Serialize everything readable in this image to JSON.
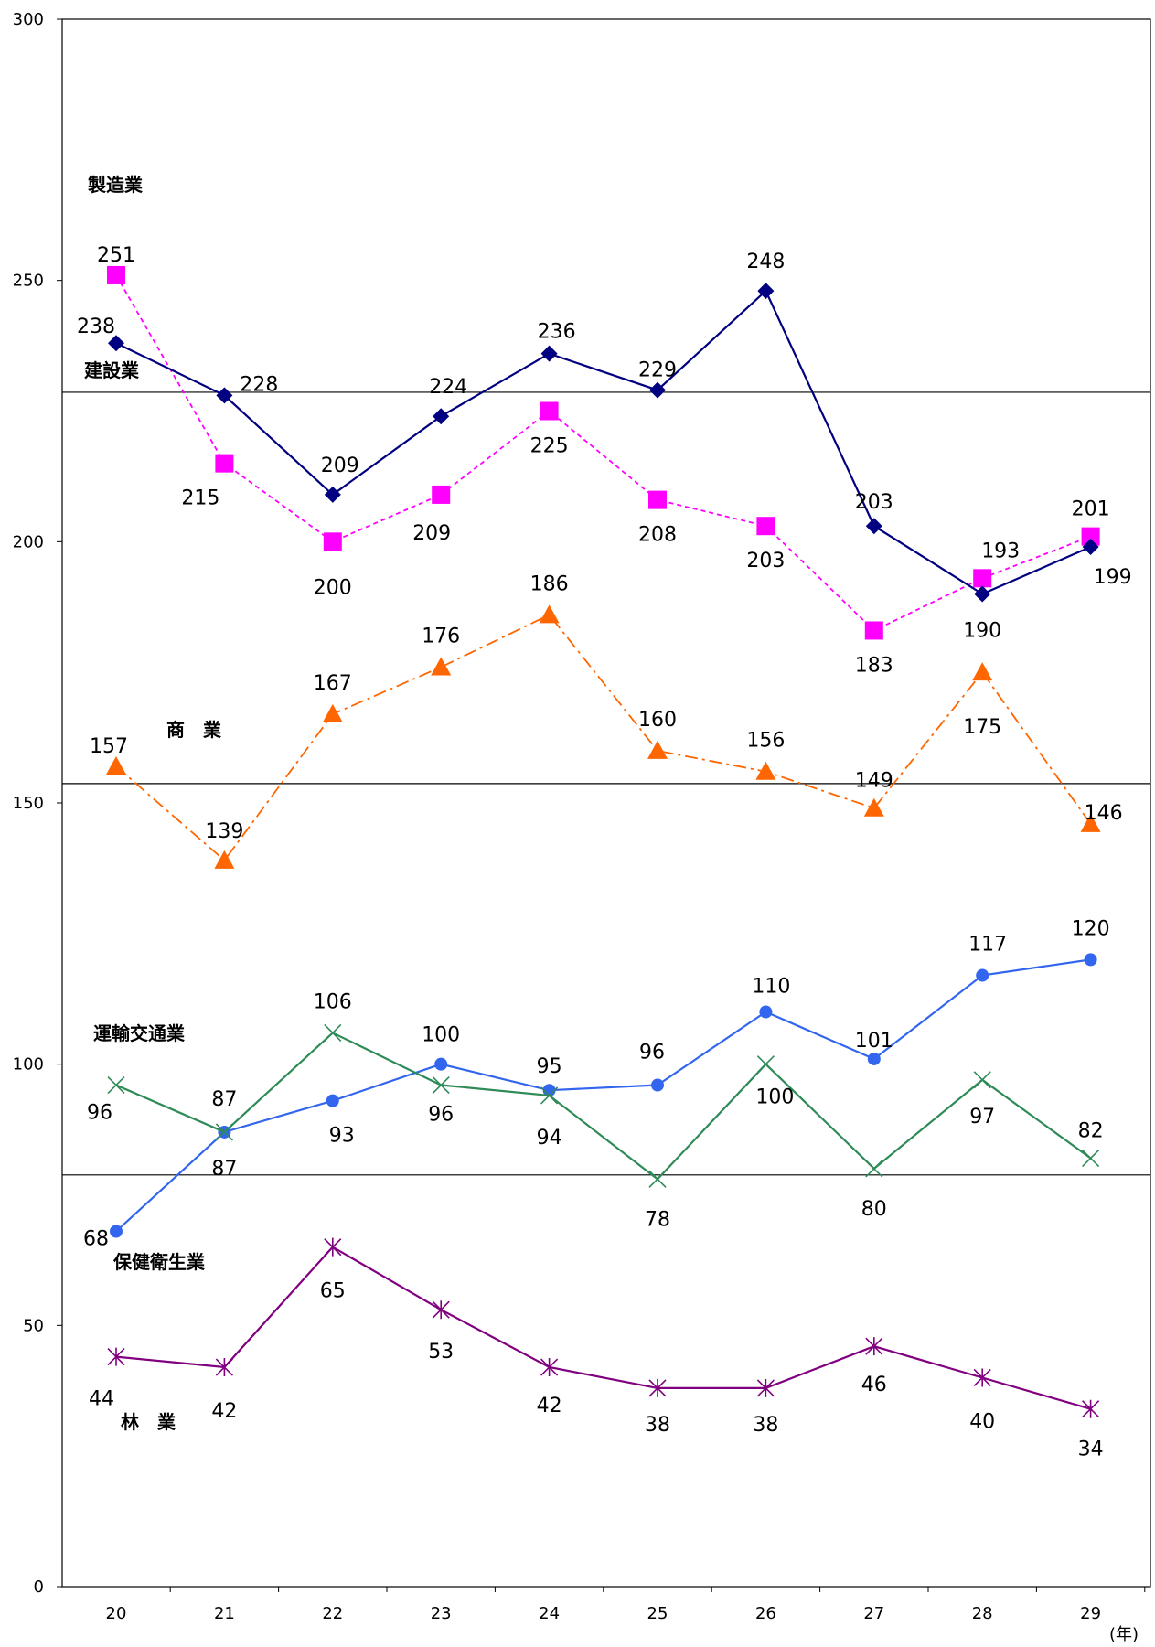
{
  "chart_data": {
    "type": "line",
    "x": [
      "20",
      "21",
      "22",
      "23",
      "24",
      "25",
      "26",
      "27",
      "28",
      "29"
    ],
    "x_unit": "(年)",
    "ylim": [
      0,
      300
    ],
    "y_ticks": [
      "0",
      "50",
      "100",
      "150",
      "200",
      "250",
      "300"
    ],
    "grid": false,
    "reference_lines": [
      78.8,
      153.7,
      228.6
    ],
    "series": [
      {
        "name": "製造業",
        "marker": "square",
        "line": "dashed",
        "color": "#ff00ff",
        "values": [
          251,
          215,
          200,
          209,
          225,
          208,
          203,
          183,
          193,
          201
        ],
        "labels": [
          "251",
          "215",
          "200",
          "209",
          "225",
          "208",
          "203",
          "183",
          "193",
          "201"
        ]
      },
      {
        "name": "建設業",
        "marker": "diamond",
        "line": "solid",
        "color": "#000080",
        "values": [
          238,
          228,
          209,
          224,
          236,
          229,
          248,
          203,
          190,
          199
        ],
        "labels": [
          "238",
          "228",
          "209",
          "224",
          "236",
          "229",
          "248",
          "203",
          "190",
          "199"
        ]
      },
      {
        "name": "商　業",
        "marker": "triangle",
        "line": "dashdot",
        "color": "#ff6600",
        "values": [
          157,
          139,
          167,
          176,
          186,
          160,
          156,
          149,
          175,
          146
        ],
        "labels": [
          "157",
          "139",
          "167",
          "176",
          "186",
          "160",
          "156",
          "149",
          "175",
          "146"
        ]
      },
      {
        "name": "運輸交通業",
        "marker": "circle",
        "line": "solid",
        "color": "#3366ee",
        "values": [
          68,
          87,
          93,
          100,
          95,
          96,
          110,
          101,
          117,
          120
        ],
        "labels": [
          "68",
          "87",
          "93",
          "100",
          "95",
          "96",
          "110",
          "101",
          "117",
          "120"
        ]
      },
      {
        "name": "保健衛生業",
        "marker": "x",
        "line": "solid",
        "color": "#2e8b57",
        "values": [
          96,
          87,
          106,
          96,
          94,
          78,
          100,
          80,
          97,
          82
        ],
        "labels": [
          "96",
          "87",
          "106",
          "96",
          "94",
          "78",
          "100",
          "80",
          "97",
          "82"
        ]
      },
      {
        "name": "林　業",
        "marker": "asterisk",
        "line": "solid",
        "color": "#800080",
        "values": [
          44,
          42,
          65,
          53,
          42,
          38,
          38,
          46,
          40,
          34
        ],
        "labels": [
          "44",
          "42",
          "65",
          "53",
          "42",
          "38",
          "38",
          "46",
          "40",
          "34"
        ]
      }
    ]
  }
}
